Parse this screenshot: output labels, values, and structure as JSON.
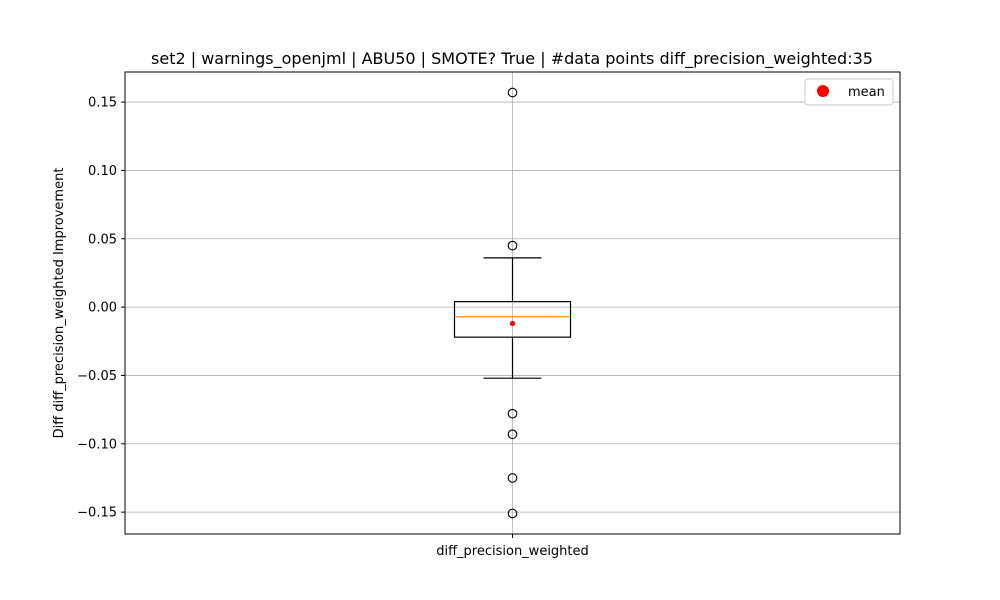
{
  "chart_data": {
    "type": "box",
    "title": "set2 | warnings_openjml | ABU50 | SMOTE? True | #data points diff_precision_weighted:35",
    "xlabel": "",
    "ylabel": "Diff diff_precision_weighted Improvement",
    "categories": [
      "diff_precision_weighted"
    ],
    "ylim": [
      -0.166,
      0.172
    ],
    "yticks": [
      -0.15,
      -0.1,
      -0.05,
      0.0,
      0.05,
      0.1,
      0.15
    ],
    "ytick_labels": [
      "−0.15",
      "−0.10",
      "−0.05",
      "0.00",
      "0.05",
      "0.10",
      "0.15"
    ],
    "grid": true,
    "legend": {
      "position": "top-right",
      "entries": [
        {
          "label": "mean",
          "color": "#ff0000"
        }
      ]
    },
    "box": {
      "whisker_low": -0.052,
      "q1": -0.022,
      "median": -0.007,
      "q3": 0.004,
      "whisker_high": 0.036,
      "mean": -0.012,
      "outliers": [
        0.157,
        0.045,
        -0.078,
        -0.093,
        -0.125,
        -0.151
      ]
    },
    "colors": {
      "box": "#000000",
      "median": "#ff7f0e",
      "mean": "#ff0000",
      "grid": "#b0b0b0"
    }
  }
}
